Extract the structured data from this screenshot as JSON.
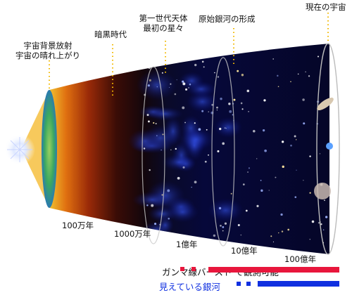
{
  "labels": {
    "cmb_line1": "宇宙背景放射",
    "cmb_line2": "宇宙の晴れ上がり",
    "dark_age": "暗黒時代",
    "first_stars_line1": "第一世代天体",
    "first_stars_line2": "最初の星々",
    "protogalaxy": "原始銀河の形成",
    "present": "現在の宇宙"
  },
  "eras": [
    "100万年",
    "1000万年",
    "1億年",
    "10億年",
    "100億年"
  ],
  "legend": {
    "gamma": "ガンマ線バースト で観測可能",
    "galaxies": "見えている銀河",
    "gamma_color": "#e8163c",
    "galaxy_color": "#1030e0"
  }
}
